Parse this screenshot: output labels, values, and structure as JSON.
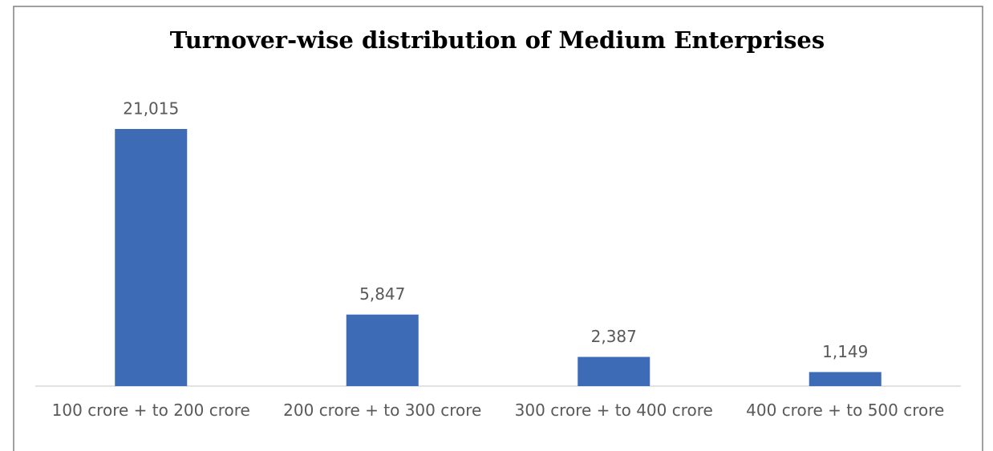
{
  "chart_data": {
    "type": "bar",
    "title": "Turnover-wise distribution of Medium Enterprises",
    "categories": [
      "100 crore + to 200 crore",
      "200 crore + to 300 crore",
      "300 crore + to 400 crore",
      "400 crore + to 500 crore"
    ],
    "values": [
      21015,
      5847,
      2387,
      1149
    ],
    "value_labels": [
      "21,015",
      "5,847",
      "2,387",
      "1,149"
    ],
    "color": "#3d6bb5"
  }
}
